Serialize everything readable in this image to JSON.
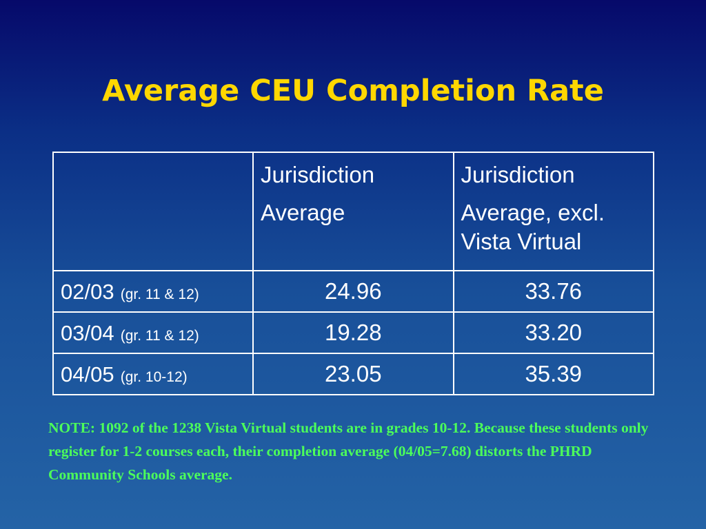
{
  "slide": {
    "title": "Average CEU Completion Rate"
  },
  "table": {
    "headers": [
      {
        "line1": "",
        "line2": ""
      },
      {
        "line1": "Jurisdiction",
        "line2": "Average"
      },
      {
        "line1": "Jurisdiction",
        "line2": "Average, excl. Vista Virtual"
      }
    ],
    "rows": [
      {
        "period": "02/03",
        "grade": "(gr. 11 & 12)",
        "jurisdiction_average": "24.96",
        "average_excl_vista": "33.76"
      },
      {
        "period": "03/04",
        "grade": "(gr. 11 & 12)",
        "jurisdiction_average": "19.28",
        "average_excl_vista": "33.20"
      },
      {
        "period": "04/05",
        "grade": "(gr. 10-12)",
        "jurisdiction_average": "23.05",
        "average_excl_vista": "35.39"
      }
    ]
  },
  "note": {
    "text": "NOTE: 1092 of the 1238 Vista Virtual students are in grades 10-12. Because these students only register for 1-2 courses each, their completion average (04/05=7.68) distorts the PHRD Community Schools average."
  },
  "colors": {
    "title": "#ffd700",
    "note": "#4cff5a",
    "table_text": "#ffffff",
    "background_top": "#06096a",
    "background_bottom": "#2463a6"
  }
}
